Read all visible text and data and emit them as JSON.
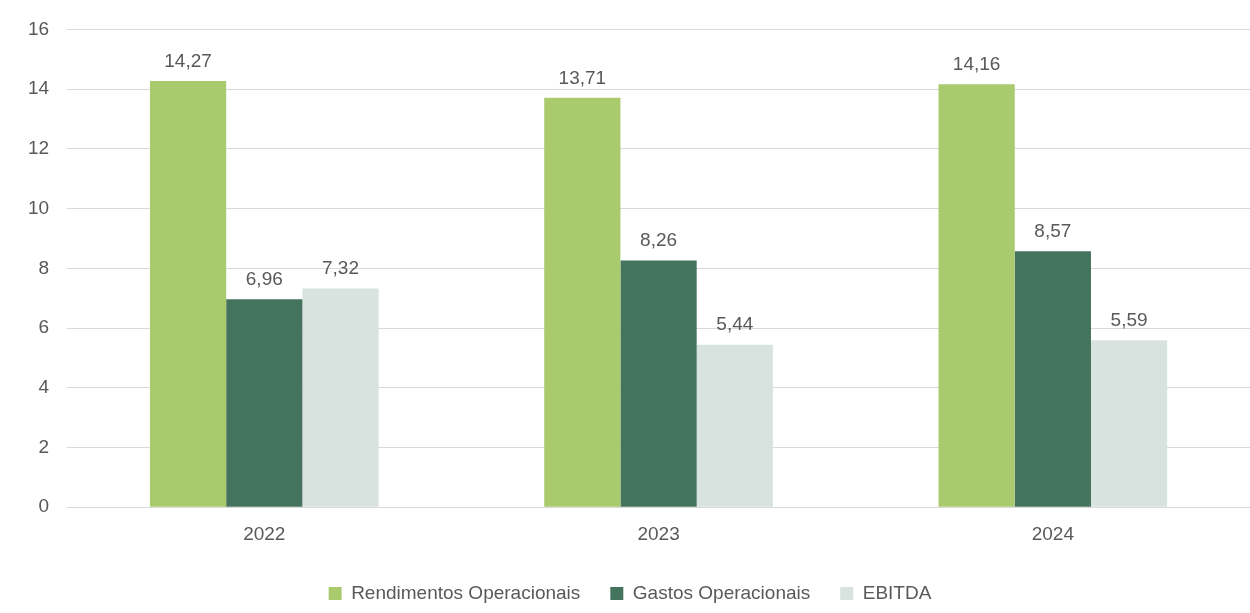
{
  "chart_data": {
    "type": "bar",
    "categories": [
      "2022",
      "2023",
      "2024"
    ],
    "series": [
      {
        "name": "Rendimentos Operacionais",
        "color": "#a9cb6e",
        "values": [
          14.27,
          13.71,
          14.16
        ],
        "value_labels": [
          "14,27",
          "13,71",
          "14,16"
        ]
      },
      {
        "name": "Gastos Operacionais",
        "color": "#44735e",
        "values": [
          6.96,
          8.26,
          8.57
        ],
        "value_labels": [
          "6,96",
          "8,26",
          "8,57"
        ]
      },
      {
        "name": "EBITDA",
        "color": "#d8e3df",
        "values": [
          7.32,
          5.44,
          5.59
        ],
        "value_labels": [
          "7,32",
          "5,44",
          "5,59"
        ]
      }
    ],
    "ylim": [
      0,
      16
    ],
    "yticks": [
      0,
      2,
      4,
      6,
      8,
      10,
      12,
      14,
      16
    ],
    "grid": "y",
    "legend": "bottom"
  }
}
